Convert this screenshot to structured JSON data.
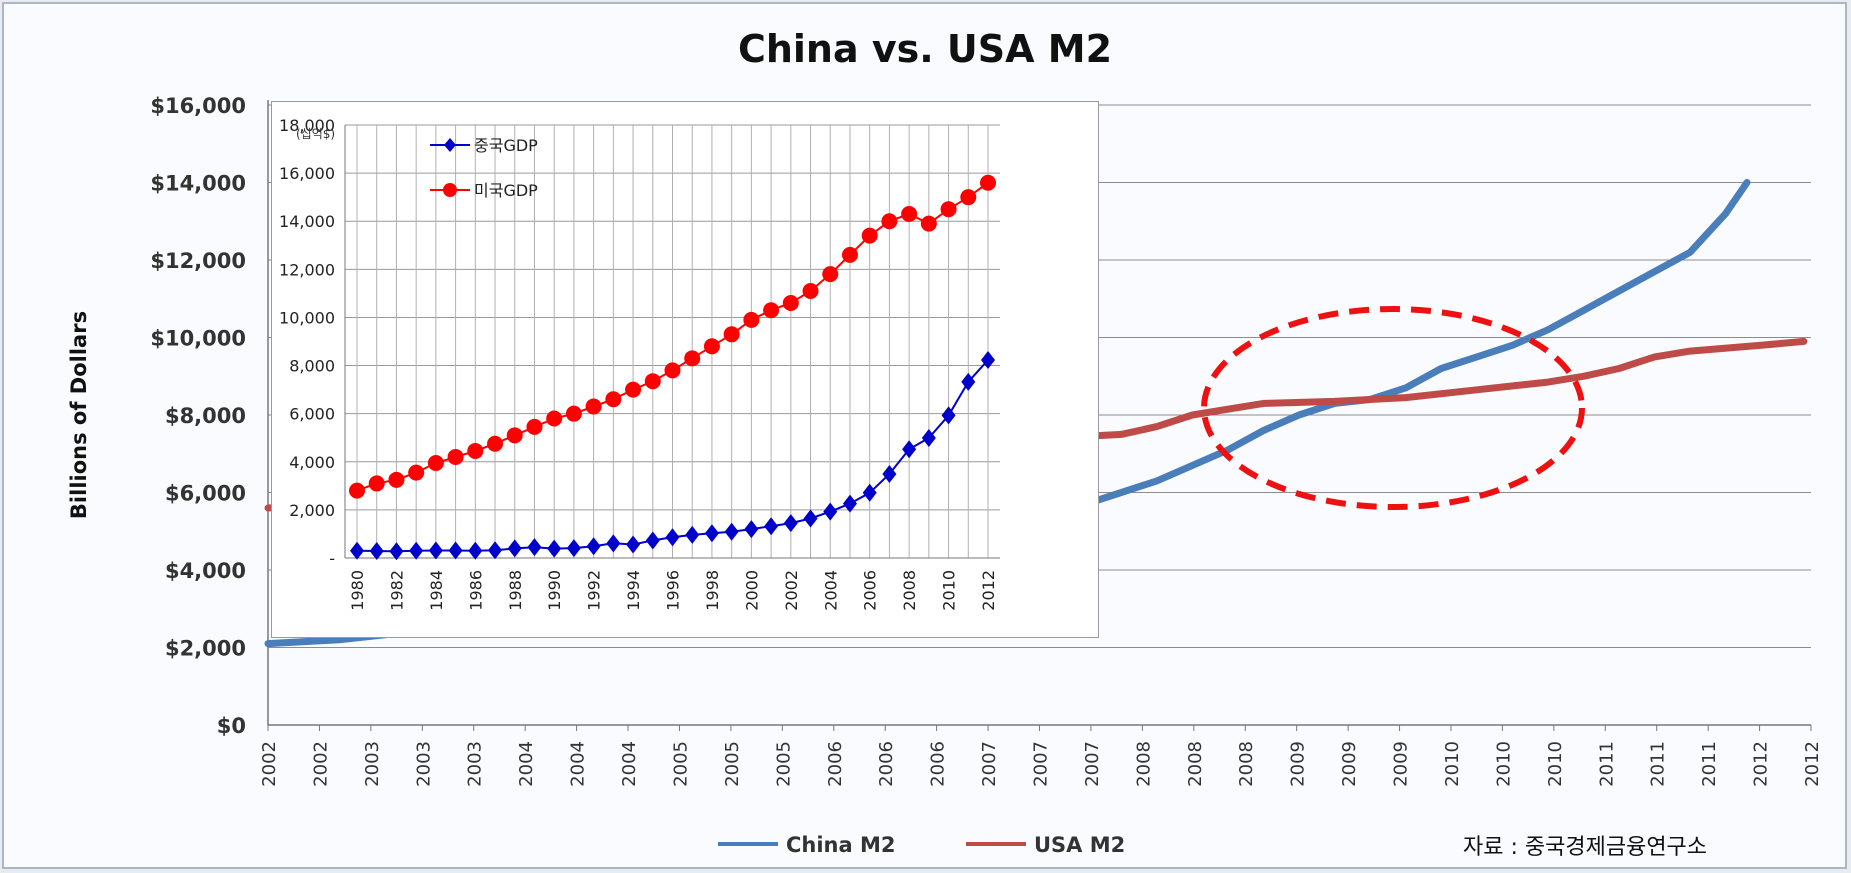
{
  "chart_data": [
    {
      "type": "line",
      "title": "China vs. USA M2",
      "xlabel": "",
      "ylabel": "Billions of Dollars",
      "ylim": [
        0,
        16000
      ],
      "yticks": [
        "$0",
        "$2,000",
        "$4,000",
        "$6,000",
        "$8,000",
        "$10,000",
        "$12,000",
        "$14,000",
        "$16,000"
      ],
      "ytick_values": [
        0,
        2000,
        4000,
        6000,
        8000,
        10000,
        12000,
        14000,
        16000
      ],
      "x_tick_labels": [
        "2002",
        "2002",
        "2003",
        "2003",
        "2003",
        "2004",
        "2004",
        "2004",
        "2005",
        "2005",
        "2005",
        "2006",
        "2006",
        "2006",
        "2007",
        "2007",
        "2007",
        "2008",
        "2008",
        "2008",
        "2009",
        "2009",
        "2009",
        "2010",
        "2010",
        "2010",
        "2011",
        "2011",
        "2011",
        "2012",
        "2012"
      ],
      "grid": "horizontal",
      "legend_position": "bottom",
      "series": [
        {
          "name": "China M2",
          "color": "#4a7ebb",
          "x": [
            2002.0,
            2002.5,
            2003.0,
            2003.5,
            2004.0,
            2004.5,
            2005.0,
            2005.5,
            2006.0,
            2006.5,
            2007.0,
            2007.25,
            2007.5,
            2007.75,
            2008.0,
            2008.25,
            2008.5,
            2008.75,
            2009.0,
            2009.25,
            2009.5,
            2009.75,
            2010.0,
            2010.25,
            2010.5,
            2010.75,
            2011.0,
            2011.25,
            2011.5,
            2011.75,
            2012.0,
            2012.25,
            2012.4
          ],
          "y": [
            2100,
            2200,
            2400,
            2650,
            2900,
            3150,
            3450,
            3750,
            4050,
            4400,
            4700,
            4900,
            5300,
            5700,
            6000,
            6300,
            6700,
            7100,
            7600,
            8000,
            8300,
            8400,
            8700,
            9200,
            9500,
            9800,
            10200,
            10700,
            11200,
            11700,
            12200,
            13200,
            14000
          ]
        },
        {
          "name": "USA M2",
          "color": "#be4b48",
          "x": [
            2002.0,
            2002.5,
            2003.0,
            2003.5,
            2004.0,
            2004.5,
            2005.0,
            2005.5,
            2006.0,
            2006.5,
            2007.0,
            2007.5,
            2008.0,
            2008.25,
            2008.5,
            2008.75,
            2009.0,
            2009.5,
            2010.0,
            2010.5,
            2011.0,
            2011.25,
            2011.5,
            2011.75,
            2012.0,
            2012.5,
            2012.8
          ],
          "y": [
            5600,
            5700,
            5800,
            6000,
            6100,
            6300,
            6400,
            6550,
            6750,
            7000,
            7200,
            7400,
            7500,
            7700,
            8000,
            8150,
            8300,
            8350,
            8450,
            8650,
            8850,
            9000,
            9200,
            9500,
            9650,
            9800,
            9900
          ]
        }
      ],
      "annotation": "red dashed ellipse highlighting the crossover around 2008–2010"
    },
    {
      "type": "line",
      "title": "",
      "unit_label": "(십억$)",
      "ylim": [
        0,
        18000
      ],
      "yticks": [
        "-",
        "2,000",
        "4,000",
        "6,000",
        "8,000",
        "10,000",
        "12,000",
        "14,000",
        "16,000",
        "18,000"
      ],
      "ytick_values": [
        0,
        2000,
        4000,
        6000,
        8000,
        10000,
        12000,
        14000,
        16000,
        18000
      ],
      "x_tick_labels": [
        "1980",
        "1982",
        "1984",
        "1986",
        "1988",
        "1990",
        "1992",
        "1994",
        "1996",
        "1998",
        "2000",
        "2002",
        "2004",
        "2006",
        "2008",
        "2010",
        "2012"
      ],
      "grid": "both",
      "legend_position": "top-left",
      "x": [
        1980,
        1981,
        1982,
        1983,
        1984,
        1985,
        1986,
        1987,
        1988,
        1989,
        1990,
        1991,
        1992,
        1993,
        1994,
        1995,
        1996,
        1997,
        1998,
        1999,
        2000,
        2001,
        2002,
        2003,
        2004,
        2005,
        2006,
        2007,
        2008,
        2009,
        2010,
        2011,
        2012
      ],
      "series": [
        {
          "name": "중국GDP",
          "color": "#0000cc",
          "marker": "diamond",
          "values": [
            300,
            290,
            280,
            300,
            310,
            310,
            300,
            320,
            400,
            450,
            390,
            410,
            490,
            610,
            560,
            730,
            860,
            960,
            1030,
            1090,
            1200,
            1320,
            1450,
            1640,
            1930,
            2260,
            2710,
            3490,
            4520,
            4990,
            5930,
            7320,
            8230
          ]
        },
        {
          "name": "미국GDP",
          "color": "#ff0000",
          "marker": "circle",
          "values": [
            2800,
            3100,
            3250,
            3550,
            3950,
            4200,
            4450,
            4750,
            5100,
            5450,
            5800,
            6000,
            6300,
            6600,
            7000,
            7350,
            7800,
            8300,
            8800,
            9300,
            9900,
            10300,
            10600,
            11100,
            11800,
            12600,
            13400,
            14000,
            14300,
            13900,
            14500,
            15000,
            15600
          ]
        }
      ]
    }
  ],
  "source_note": "자료 : 중국경제금융연구소"
}
